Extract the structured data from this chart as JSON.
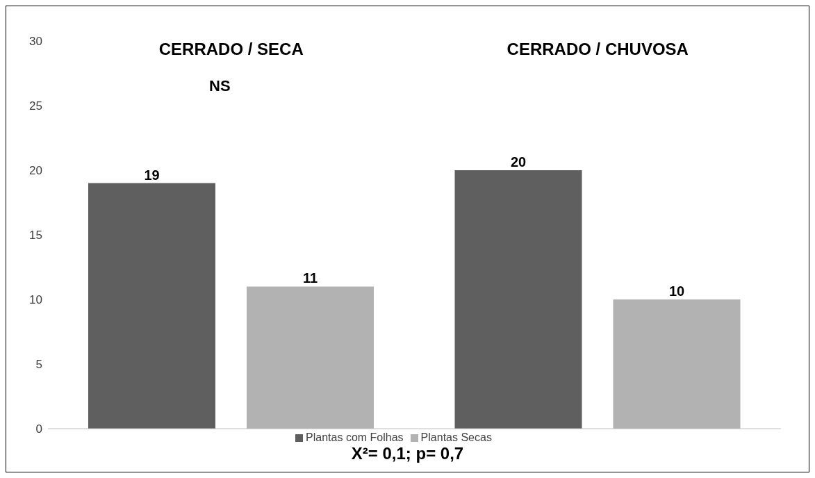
{
  "chart_data": {
    "type": "bar",
    "categories": [
      "CERRADO / SECA",
      "CERRADO / CHUVOSA"
    ],
    "series": [
      {
        "name": "Plantas com Folhas",
        "color": "#5f5f5f",
        "values": [
          19,
          20
        ]
      },
      {
        "name": "Plantas Secas",
        "color": "#b2b2b2",
        "values": [
          11,
          10
        ]
      }
    ],
    "ylim": [
      0,
      30
    ],
    "yticks": [
      0,
      5,
      10,
      15,
      20,
      25,
      30
    ],
    "grid": false,
    "legend": "bottom",
    "data_labels": true,
    "annotations": [
      "NS",
      "X²= 0,1; p= 0,7"
    ]
  }
}
